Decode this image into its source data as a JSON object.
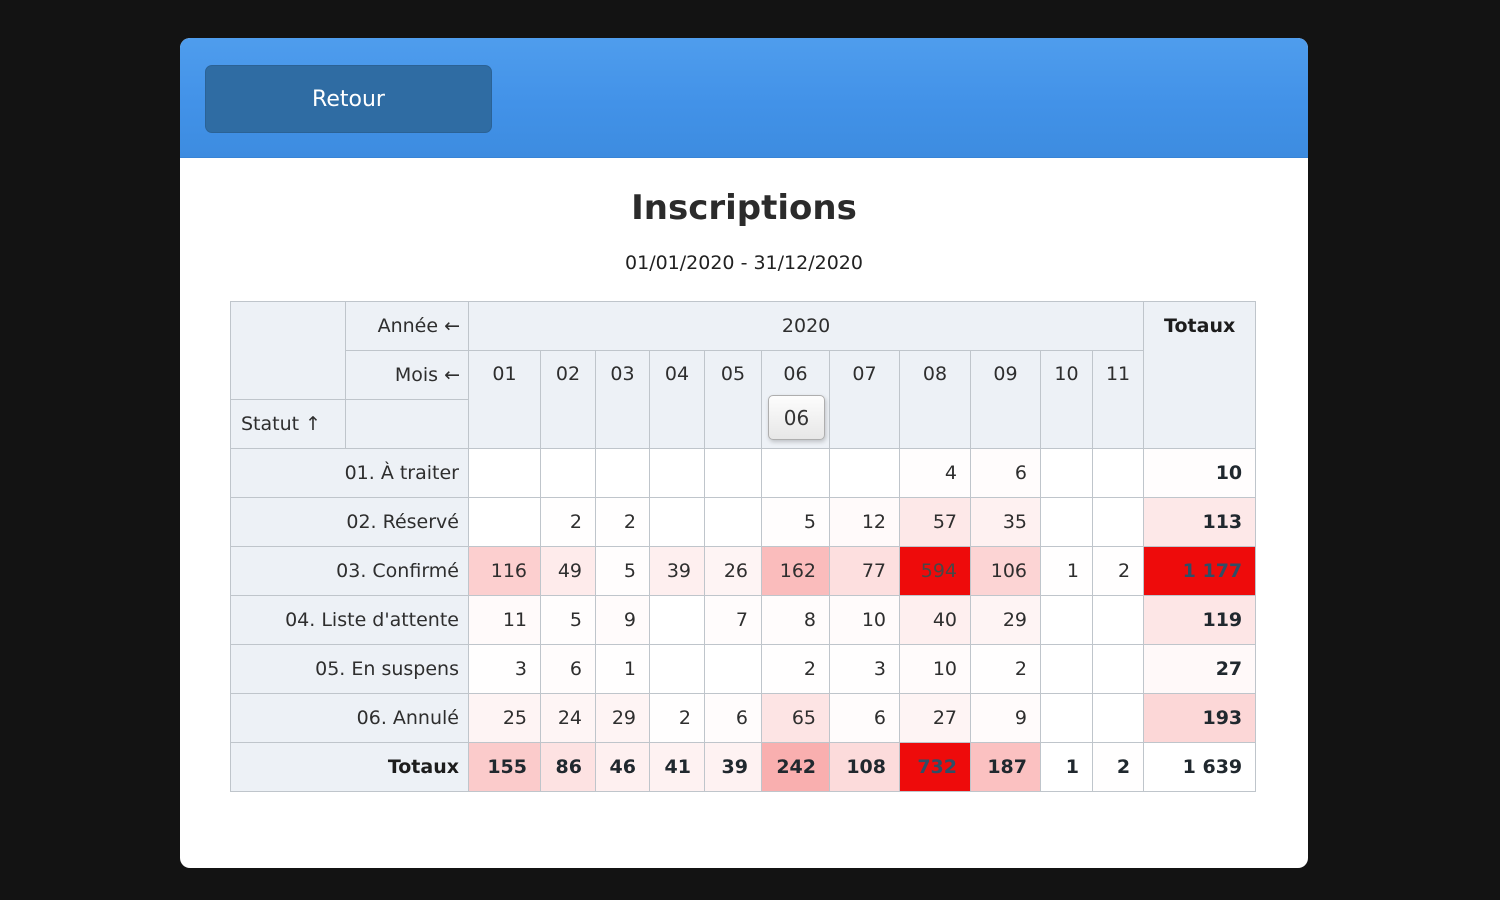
{
  "colors": {
    "page_bg": "#131313",
    "card_bg": "#ffffff",
    "header_blue": "#4292e8",
    "button_blue": "#2f6ca3",
    "panel_cell_bg": "#edf1f6",
    "heat_full_red": "#ee0b0b"
  },
  "header": {
    "back_button": {
      "label": "Retour"
    }
  },
  "title": "Inscriptions",
  "subtitle": "01/01/2020 - 31/12/2020",
  "table": {
    "corner_labels": {
      "year": "Année ←",
      "month": "Mois ←",
      "status": "Statut ↑"
    },
    "year_header": "2020",
    "totals_header": "Totaux",
    "months": [
      "01",
      "02",
      "03",
      "04",
      "05",
      "06",
      "07",
      "08",
      "09",
      "10",
      "11"
    ],
    "tooltip": {
      "text": "06",
      "anchor_month": "06"
    },
    "rows": [
      {
        "label": "01. À traiter",
        "values": [
          "",
          "",
          "",
          "",
          "",
          "",
          "",
          4,
          6,
          "",
          ""
        ],
        "total": 10
      },
      {
        "label": "02. Réservé",
        "values": [
          "",
          2,
          2,
          "",
          "",
          5,
          12,
          57,
          35,
          "",
          ""
        ],
        "total": 113
      },
      {
        "label": "03. Confirmé",
        "values": [
          116,
          49,
          5,
          39,
          26,
          162,
          77,
          594,
          106,
          1,
          2
        ],
        "total": 1177
      },
      {
        "label": "04. Liste d'attente",
        "values": [
          11,
          5,
          9,
          "",
          7,
          8,
          10,
          40,
          29,
          "",
          ""
        ],
        "total": 119
      },
      {
        "label": "05. En suspens",
        "values": [
          3,
          6,
          1,
          "",
          "",
          2,
          3,
          10,
          2,
          "",
          ""
        ],
        "total": 27
      },
      {
        "label": "06. Annulé",
        "values": [
          25,
          24,
          29,
          2,
          6,
          65,
          6,
          27,
          9,
          "",
          ""
        ],
        "total": 193
      }
    ],
    "totals_row": {
      "label": "Totaux",
      "values": [
        155,
        86,
        46,
        41,
        39,
        242,
        108,
        732,
        187,
        1,
        2
      ],
      "grand_total": 1639
    },
    "heatmap": {
      "data_max": 594,
      "totals_row_max": 732,
      "totals_col_max": 1177,
      "full_color": "#ee0b0b"
    }
  }
}
